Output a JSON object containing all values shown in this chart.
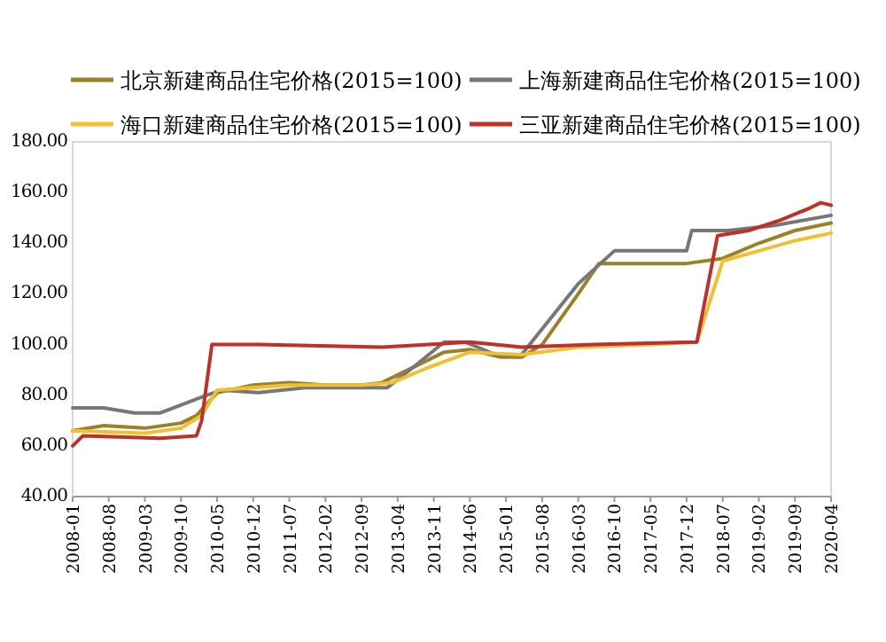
{
  "chart_data": {
    "type": "line",
    "legend": "top",
    "xlim": [
      "2008-01",
      "2020-04"
    ],
    "xticks": [
      "2008-01",
      "2008-08",
      "2009-03",
      "2009-10",
      "2010-05",
      "2010-12",
      "2011-07",
      "2012-02",
      "2012-09",
      "2013-04",
      "2013-11",
      "2014-06",
      "2015-01",
      "2015-08",
      "2016-03",
      "2016-10",
      "2017-05",
      "2017-12",
      "2018-07",
      "2019-02",
      "2019-09",
      "2020-04"
    ],
    "ylim": [
      40,
      180
    ],
    "yticks": [
      {
        "value": 40,
        "label": "40.00"
      },
      {
        "value": 60,
        "label": "60.00"
      },
      {
        "value": 80,
        "label": "80.00"
      },
      {
        "value": 100,
        "label": "100.00"
      },
      {
        "value": 120,
        "label": "120.00"
      },
      {
        "value": 140,
        "label": "140.00"
      },
      {
        "value": 160,
        "label": "160.00"
      },
      {
        "value": 180,
        "label": "180.00"
      }
    ],
    "grid": false,
    "marker": "none",
    "line_style": "solid",
    "series": [
      {
        "name": "北京新建商品住宅价格(2015=100)",
        "color": "#9a8227",
        "x": [
          "2008-01",
          "2008-07",
          "2009-03",
          "2009-10",
          "2010-01",
          "2010-05",
          "2010-12",
          "2011-07",
          "2012-02",
          "2012-09",
          "2013-01",
          "2013-06",
          "2014-01",
          "2014-06",
          "2014-12",
          "2015-04",
          "2015-08",
          "2016-03",
          "2016-07",
          "2017-12",
          "2018-07",
          "2019-02",
          "2019-09",
          "2020-04"
        ],
        "values": [
          66,
          68,
          67,
          69,
          72,
          81,
          84,
          85,
          84,
          84,
          85,
          90,
          97,
          98,
          95,
          95,
          100,
          120,
          132,
          132,
          134,
          140,
          145,
          148
        ]
      },
      {
        "name": "上海新建商品住宅价格(2015=100)",
        "color": "#777777",
        "x": [
          "2008-01",
          "2008-07",
          "2009-01",
          "2009-06",
          "2010-03",
          "2010-06",
          "2011-01",
          "2011-10",
          "2013-02",
          "2013-07",
          "2014-01",
          "2014-05",
          "2014-11",
          "2015-04",
          "2016-03",
          "2016-10",
          "2017-12",
          "2018-01",
          "2018-08",
          "2019-05",
          "2020-04"
        ],
        "values": [
          75,
          75,
          73,
          73,
          80,
          82,
          81,
          83,
          83,
          91,
          101,
          101,
          96,
          96,
          124,
          137,
          137,
          145,
          145,
          147,
          151
        ]
      },
      {
        "name": "海口新建商品住宅价格(2015=100)",
        "color": "#f0c030",
        "x": [
          "2008-01",
          "2009-03",
          "2009-10",
          "2010-02",
          "2010-05",
          "2011-07",
          "2012-09",
          "2013-03",
          "2013-10",
          "2014-06",
          "2015-04",
          "2016-03",
          "2017-05",
          "2018-02",
          "2018-07",
          "2019-02",
          "2019-09",
          "2020-04"
        ],
        "values": [
          66,
          65,
          67,
          72,
          82,
          84,
          84,
          85,
          91,
          97,
          96,
          99,
          100,
          101,
          133,
          137,
          141,
          144
        ]
      },
      {
        "name": "三亚新建商品住宅价格(2015=100)",
        "color": "#c0302a",
        "x": [
          "2008-01",
          "2008-03",
          "2009-06",
          "2010-01",
          "2010-02",
          "2010-04",
          "2011-01",
          "2013-01",
          "2014-06",
          "2015-04",
          "2016-06",
          "2018-02",
          "2018-06",
          "2018-12",
          "2019-06",
          "2019-12",
          "2020-02",
          "2020-04"
        ],
        "values": [
          60,
          64,
          63,
          64,
          70,
          100,
          100,
          99,
          101,
          99,
          100,
          101,
          143,
          145,
          149,
          154,
          156,
          155
        ]
      }
    ]
  }
}
